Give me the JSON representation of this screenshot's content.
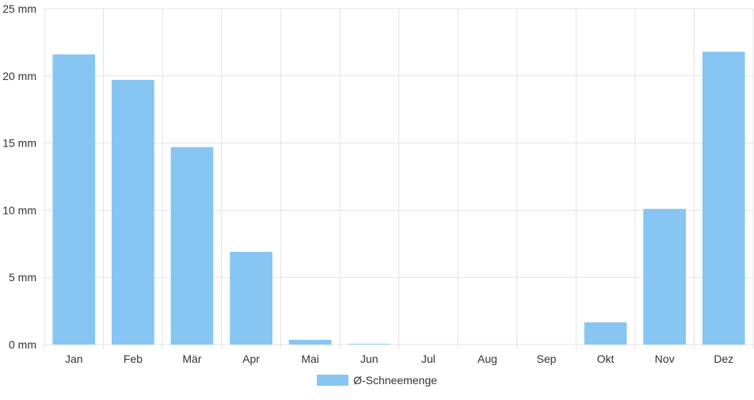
{
  "chart_data": {
    "type": "bar",
    "categories": [
      "Jan",
      "Feb",
      "Mär",
      "Apr",
      "Mai",
      "Jun",
      "Jul",
      "Aug",
      "Sep",
      "Okt",
      "Nov",
      "Dez"
    ],
    "series": [
      {
        "name": "Ø-Schneemenge",
        "values": [
          21.6,
          19.7,
          14.7,
          6.9,
          0.35,
          0.05,
          0,
          0,
          0,
          1.65,
          10.1,
          21.8
        ]
      }
    ],
    "y_ticks": [
      "0 mm",
      "5 mm",
      "10 mm",
      "15 mm",
      "20 mm",
      "25 mm"
    ],
    "ylim": [
      0,
      25
    ],
    "grid": true,
    "legend_position": "bottom-center",
    "colors": {
      "bar": "#87c5f2",
      "grid": "#e3e3e3",
      "axis_text": "#333333"
    }
  }
}
